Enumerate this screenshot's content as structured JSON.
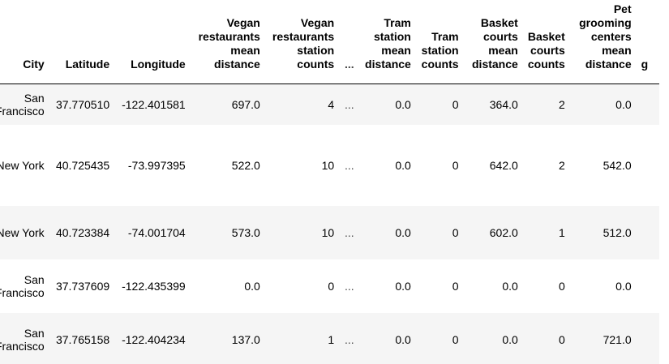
{
  "columns": [
    {
      "key": "city",
      "label": "City"
    },
    {
      "key": "lat",
      "label": "Latitude"
    },
    {
      "key": "lon",
      "label": "Longitude"
    },
    {
      "key": "vegan_dist",
      "label": "Vegan restaurants mean distance"
    },
    {
      "key": "vegan_cnt",
      "label": "Vegan restaurants station counts"
    },
    {
      "key": "ellipsis",
      "label": "..."
    },
    {
      "key": "tram_dist",
      "label": "Tram station mean distance"
    },
    {
      "key": "tram_cnt",
      "label": "Tram station counts"
    },
    {
      "key": "basket_dist",
      "label": "Basket courts mean distance"
    },
    {
      "key": "basket_cnt",
      "label": "Basket courts counts"
    },
    {
      "key": "pet_dist",
      "label": "Pet grooming centers mean distance"
    },
    {
      "key": "cut",
      "label": "g"
    }
  ],
  "rows": [
    {
      "city": "San Francisco",
      "lat": "37.770510",
      "lon": "-122.401581",
      "vegan_dist": "697.0",
      "vegan_cnt": "4",
      "ellipsis": "...",
      "tram_dist": "0.0",
      "tram_cnt": "0",
      "basket_dist": "364.0",
      "basket_cnt": "2",
      "pet_dist": "0.0"
    },
    {
      "city": "New York",
      "lat": "40.725435",
      "lon": "-73.997395",
      "vegan_dist": "522.0",
      "vegan_cnt": "10",
      "ellipsis": "...",
      "tram_dist": "0.0",
      "tram_cnt": "0",
      "basket_dist": "642.0",
      "basket_cnt": "2",
      "pet_dist": "542.0"
    },
    {
      "city": "New York",
      "lat": "40.723384",
      "lon": "-74.001704",
      "vegan_dist": "573.0",
      "vegan_cnt": "10",
      "ellipsis": "...",
      "tram_dist": "0.0",
      "tram_cnt": "0",
      "basket_dist": "602.0",
      "basket_cnt": "1",
      "pet_dist": "512.0"
    },
    {
      "city": "San Francisco",
      "lat": "37.737609",
      "lon": "-122.435399",
      "vegan_dist": "0.0",
      "vegan_cnt": "0",
      "ellipsis": "...",
      "tram_dist": "0.0",
      "tram_cnt": "0",
      "basket_dist": "0.0",
      "basket_cnt": "0",
      "pet_dist": "0.0"
    },
    {
      "city": "San Francisco",
      "lat": "37.765158",
      "lon": "-122.404234",
      "vegan_dist": "137.0",
      "vegan_cnt": "1",
      "ellipsis": "...",
      "tram_dist": "0.0",
      "tram_cnt": "0",
      "basket_dist": "0.0",
      "basket_cnt": "0",
      "pet_dist": "721.0"
    }
  ]
}
